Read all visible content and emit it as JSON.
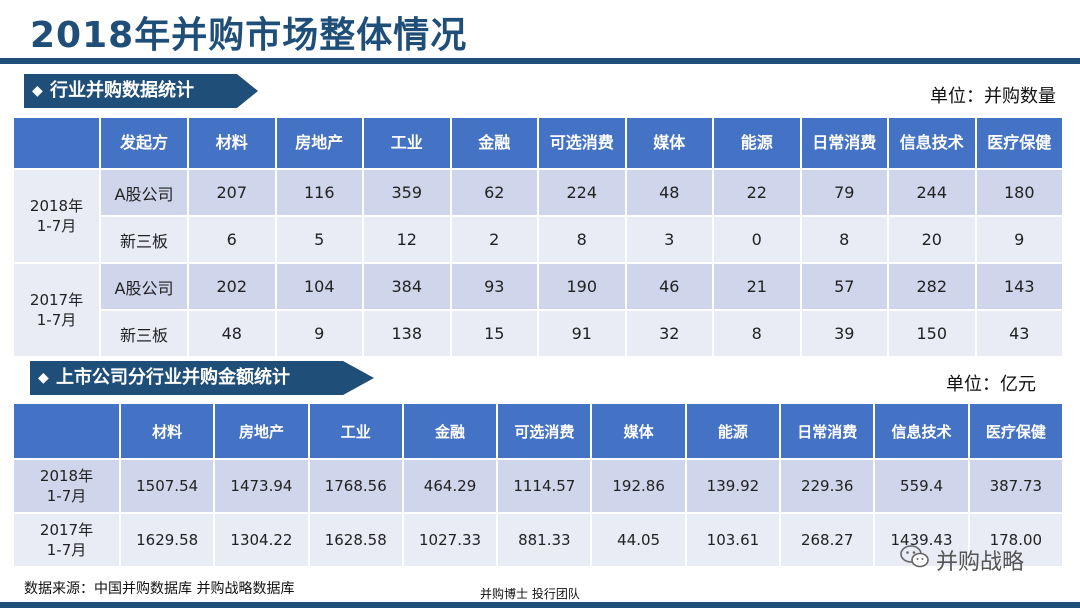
{
  "title": "2018年并购市场整体情况",
  "section1": {
    "banner": "行业并购数据统计",
    "unit": "单位：并购数量",
    "corner": "发起方",
    "columns": [
      "材料",
      "房地产",
      "工业",
      "金融",
      "可选消费",
      "媒体",
      "能源",
      "日常消费",
      "信息技术",
      "医疗保健"
    ],
    "periods": [
      {
        "label": "2018年\n1-7月",
        "rows": [
          {
            "type": "A股公司",
            "values": [
              "207",
              "116",
              "359",
              "62",
              "224",
              "48",
              "22",
              "79",
              "244",
              "180"
            ]
          },
          {
            "type": "新三板",
            "values": [
              "6",
              "5",
              "12",
              "2",
              "8",
              "3",
              "0",
              "8",
              "20",
              "9"
            ]
          }
        ]
      },
      {
        "label": "2017年\n1-7月",
        "rows": [
          {
            "type": "A股公司",
            "values": [
              "202",
              "104",
              "384",
              "93",
              "190",
              "46",
              "21",
              "57",
              "282",
              "143"
            ]
          },
          {
            "type": "新三板",
            "values": [
              "48",
              "9",
              "138",
              "15",
              "91",
              "32",
              "8",
              "39",
              "150",
              "43"
            ]
          }
        ]
      }
    ]
  },
  "section2": {
    "banner": "上市公司分行业并购金额统计",
    "unit": "单位：亿元",
    "columns": [
      "材料",
      "房地产",
      "工业",
      "金融",
      "可选消费",
      "媒体",
      "能源",
      "日常消费",
      "信息技术",
      "医疗保健"
    ],
    "rows": [
      {
        "label": "2018年\n1-7月",
        "values": [
          "1507.54",
          "1473.94",
          "1768.56",
          "464.29",
          "1114.57",
          "192.86",
          "139.92",
          "229.36",
          "559.4",
          "387.73"
        ]
      },
      {
        "label": "2017年\n1-7月",
        "values": [
          "1629.58",
          "1304.22",
          "1628.58",
          "1027.33",
          "881.33",
          "44.05",
          "103.61",
          "268.27",
          "1439.43",
          "178.00"
        ]
      }
    ]
  },
  "footer": {
    "source": "数据来源：中国并购数据库 并购战略数据库",
    "center": "并购博士 投行团队",
    "watermark": "并购战略",
    "watermark_icon": "wechat-icon"
  }
}
